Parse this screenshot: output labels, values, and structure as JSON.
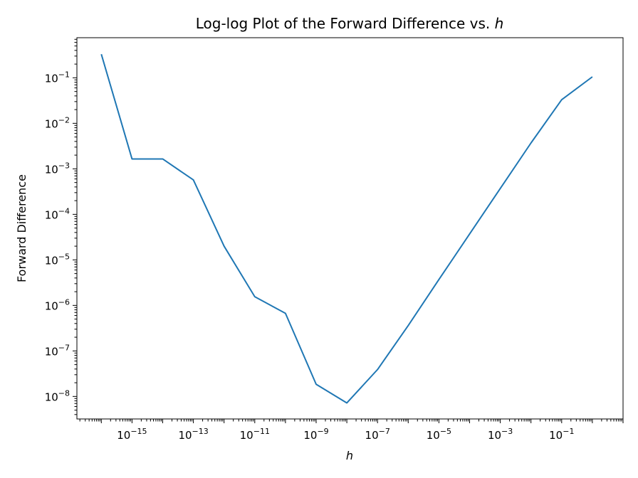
{
  "chart_data": {
    "type": "line",
    "title": "Log-log Plot of the Forward Difference vs. ",
    "title_italic": "h",
    "xlabel": "h",
    "ylabel": "Forward Difference",
    "xscale": "log",
    "yscale": "log",
    "xlim": [
      1.6e-17,
      10
    ],
    "ylim": [
      3.2e-09,
      0.76
    ],
    "grid": false,
    "series": [
      {
        "color": "#1f77b4",
        "x": [
          1e-16,
          1e-15,
          1e-14,
          1e-13,
          1e-12,
          1e-11,
          1e-10,
          1e-09,
          1e-08,
          1e-07,
          1e-06,
          1e-05,
          0.0001,
          0.001,
          0.01,
          0.1,
          1
        ],
        "y": [
          0.33,
          0.00165,
          0.00165,
          0.00057,
          2e-05,
          1.55e-06,
          6.7e-07,
          1.85e-08,
          7.2e-09,
          3.9e-08,
          3.6e-07,
          3.7e-06,
          3.7e-05,
          0.00037,
          0.0037,
          0.033,
          0.105
        ]
      }
    ],
    "xticks": [
      {
        "base": "10",
        "exp": "−15",
        "value": 1e-15
      },
      {
        "base": "10",
        "exp": "−13",
        "value": 1e-13
      },
      {
        "base": "10",
        "exp": "−11",
        "value": 1e-11
      },
      {
        "base": "10",
        "exp": "−9",
        "value": 1e-09
      },
      {
        "base": "10",
        "exp": "−7",
        "value": 1e-07
      },
      {
        "base": "10",
        "exp": "−5",
        "value": 1e-05
      },
      {
        "base": "10",
        "exp": "−3",
        "value": 0.001
      },
      {
        "base": "10",
        "exp": "−1",
        "value": 0.1
      }
    ],
    "yticks": [
      {
        "base": "10",
        "exp": "−1",
        "value": 0.1
      },
      {
        "base": "10",
        "exp": "−2",
        "value": 0.01
      },
      {
        "base": "10",
        "exp": "−3",
        "value": 0.001
      },
      {
        "base": "10",
        "exp": "−4",
        "value": 0.0001
      },
      {
        "base": "10",
        "exp": "−5",
        "value": 1e-05
      },
      {
        "base": "10",
        "exp": "−6",
        "value": 1e-06
      },
      {
        "base": "10",
        "exp": "−7",
        "value": 1e-07
      },
      {
        "base": "10",
        "exp": "−8",
        "value": 1e-08
      }
    ]
  }
}
